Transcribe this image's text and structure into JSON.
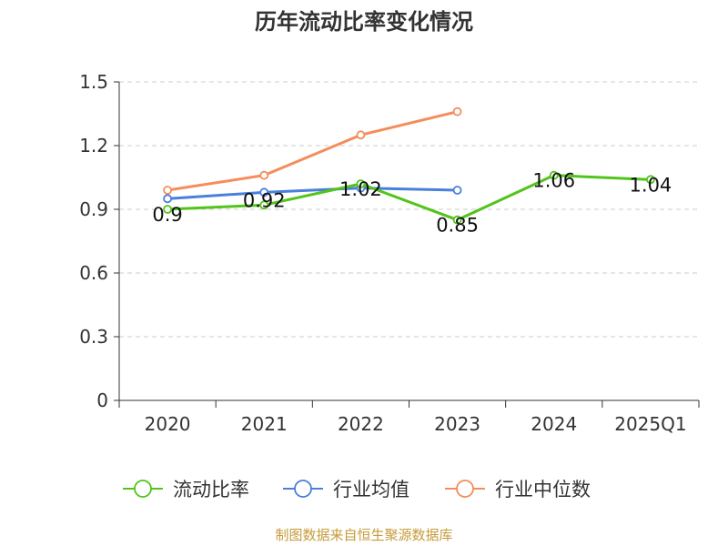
{
  "chart_data": {
    "type": "line",
    "title": "历年流动比率变化情况",
    "categories": [
      "2020",
      "2021",
      "2022",
      "2023",
      "2024",
      "2025Q1"
    ],
    "ylim": [
      0,
      1.5
    ],
    "yticks": [
      "0",
      "0.3",
      "0.6",
      "0.9",
      "1.2",
      "1.5"
    ],
    "grid": true,
    "legend_position": "bottom",
    "series": [
      {
        "name": "流动比率",
        "color": "#52c41a",
        "values": [
          0.9,
          0.92,
          1.02,
          0.85,
          1.06,
          1.04
        ],
        "labels": [
          "0.9",
          "0.92",
          "1.02",
          "0.85",
          "1.06",
          "1.04"
        ]
      },
      {
        "name": "行业均值",
        "color": "#4a7fdc",
        "values": [
          0.95,
          0.98,
          1.0,
          0.99,
          null,
          null
        ]
      },
      {
        "name": "行业中位数",
        "color": "#f58d5a",
        "values": [
          0.99,
          1.06,
          1.25,
          1.36,
          null,
          null
        ]
      }
    ]
  },
  "source": "制图数据来自恒生聚源数据库"
}
